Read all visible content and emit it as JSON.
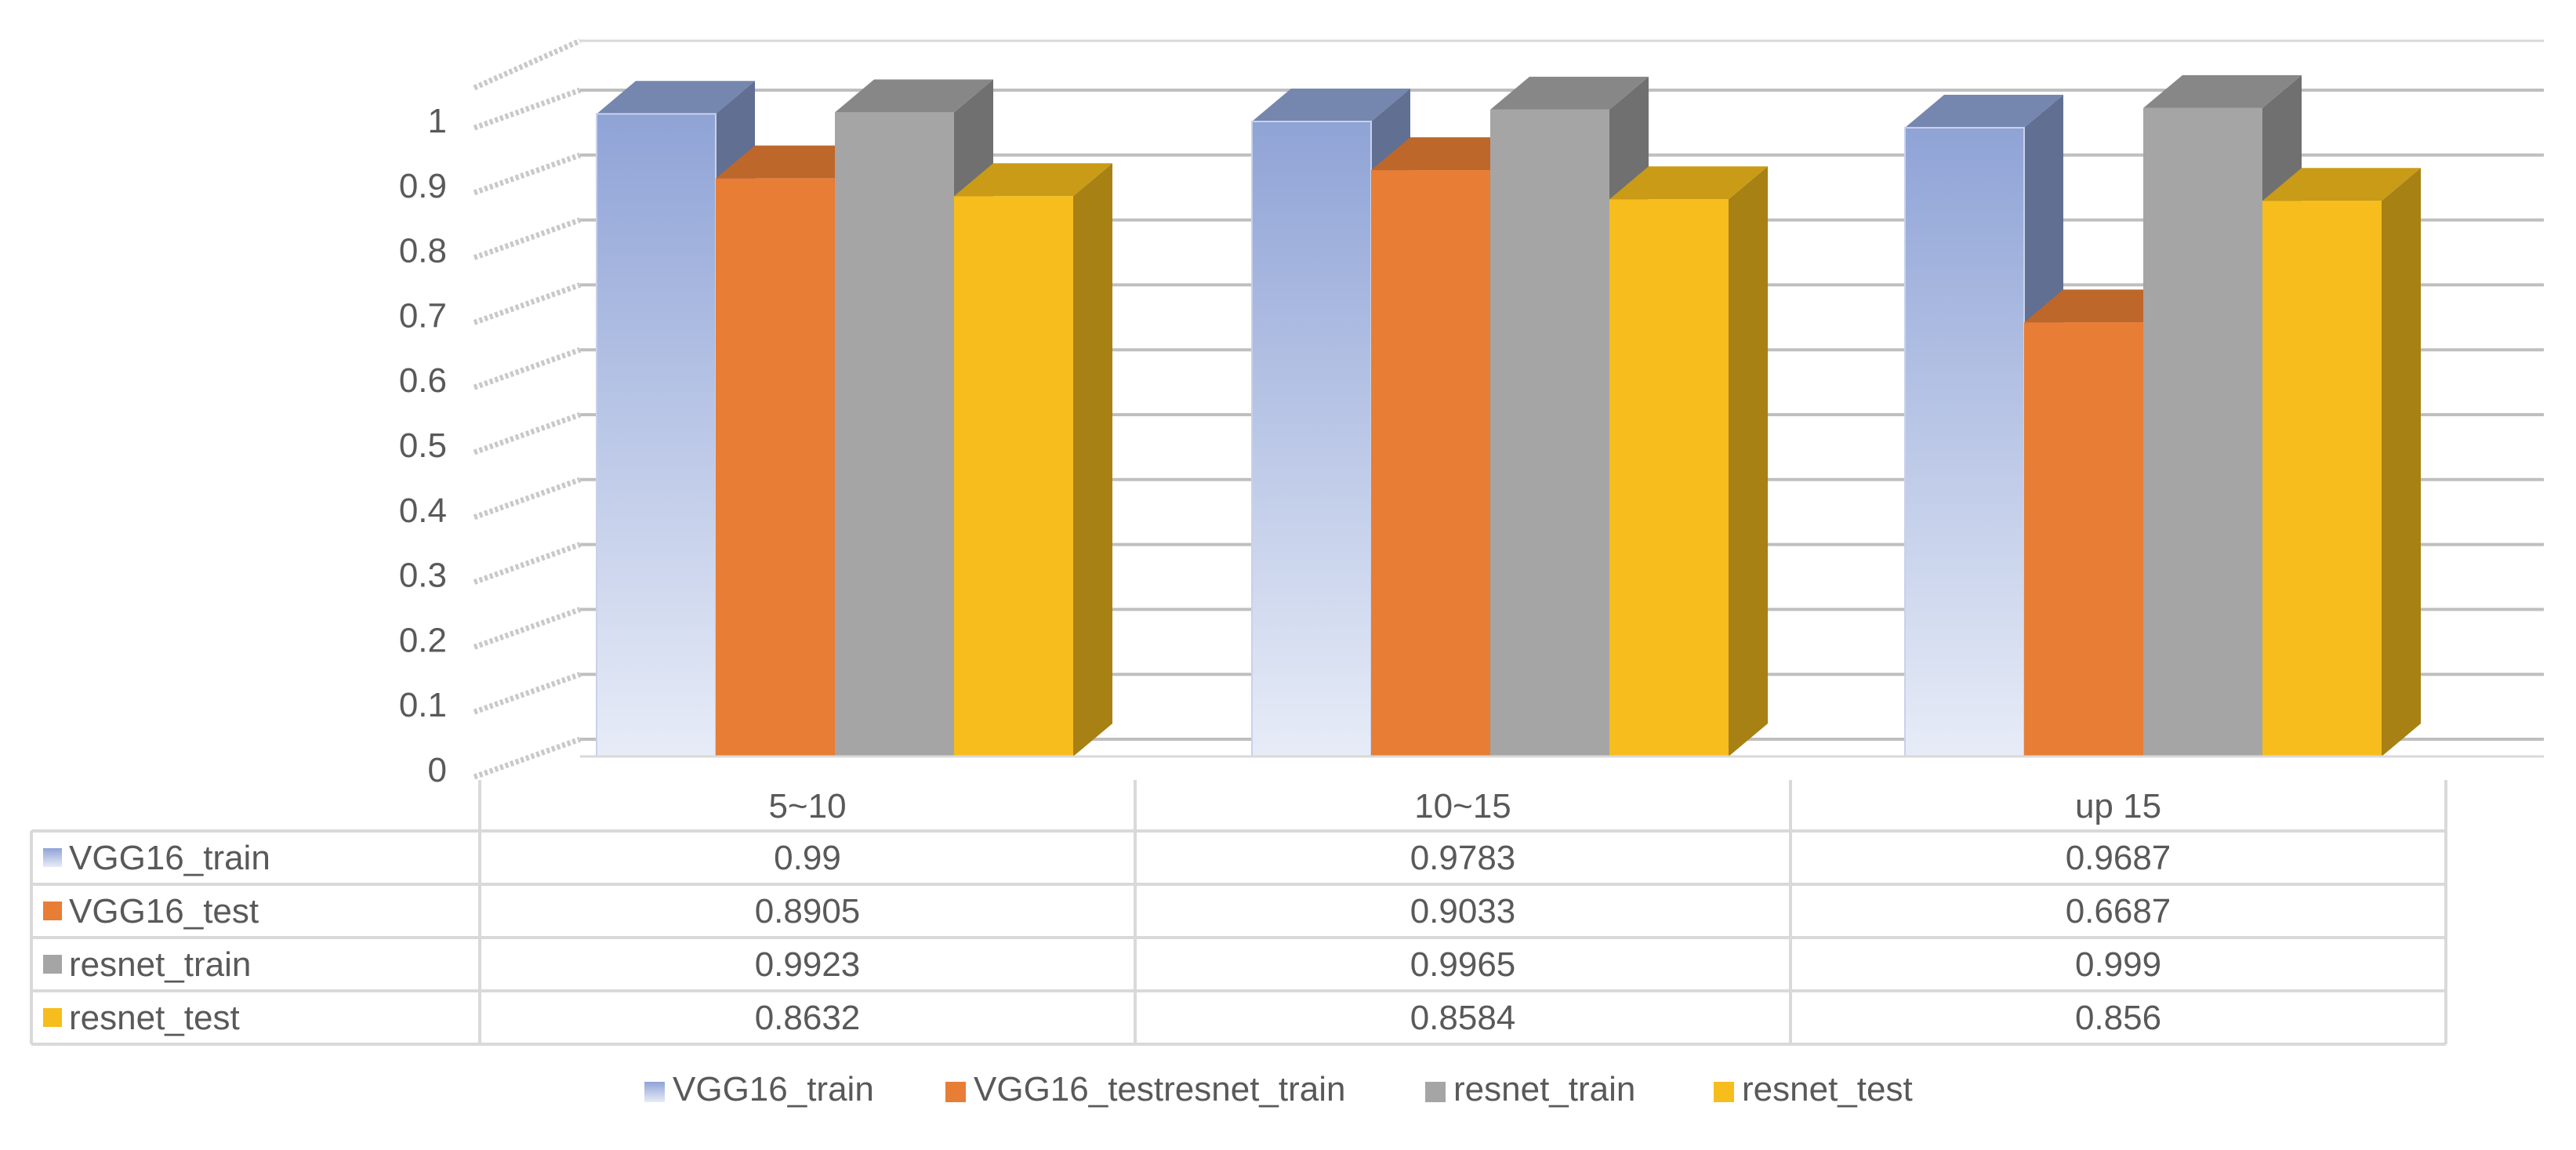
{
  "chart_data": {
    "type": "bar",
    "style": "3d-clustered-column-with-data-table",
    "categories": [
      "5~10",
      "10~15",
      "up 15"
    ],
    "series": [
      {
        "name": "VGG16_train",
        "values": [
          0.99,
          0.9783,
          0.9687
        ],
        "color": "#8FA3D6",
        "fill": "gradient"
      },
      {
        "name": "VGG16_test",
        "values": [
          0.8905,
          0.9033,
          0.6687
        ],
        "color": "#E87D35"
      },
      {
        "name": "resnet_train",
        "values": [
          0.9923,
          0.9965,
          0.999
        ],
        "color": "#A5A5A5"
      },
      {
        "name": "resnet_test",
        "values": [
          0.8632,
          0.8584,
          0.856
        ],
        "color": "#F6BD1C"
      }
    ],
    "y_ticks": [
      "0",
      "0.1",
      "0.2",
      "0.3",
      "0.4",
      "0.5",
      "0.6",
      "0.7",
      "0.8",
      "0.9",
      "1"
    ],
    "ylim": [
      0,
      1
    ],
    "grid": true,
    "data_table": {
      "rows": [
        {
          "label": "VGG16_train",
          "cells": [
            "0.99",
            "0.9783",
            "0.9687"
          ]
        },
        {
          "label": "VGG16_test",
          "cells": [
            "0.8905",
            "0.9033",
            "0.6687"
          ]
        },
        {
          "label": "resnet_train",
          "cells": [
            "0.9923",
            "0.9965",
            "0.999"
          ]
        },
        {
          "label": "resnet_test",
          "cells": [
            "0.8632",
            "0.8584",
            "0.856"
          ]
        }
      ]
    },
    "legend": {
      "position": "bottom",
      "entries": [
        "VGG16_train",
        "VGG16_testresnet_train",
        "resnet_train",
        "resnet_test"
      ]
    }
  }
}
